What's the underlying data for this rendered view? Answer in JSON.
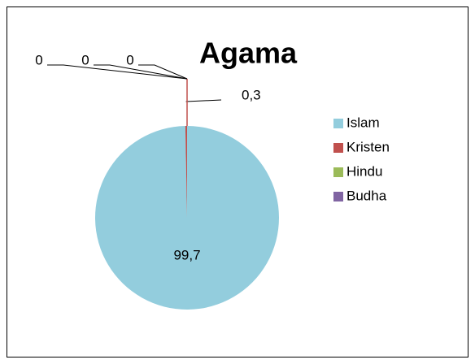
{
  "chart_data": {
    "type": "pie",
    "title": "Agama",
    "categories": [
      "Islam",
      "Kristen",
      "Hindu",
      "Budha",
      null
    ],
    "values": [
      99.7,
      0.3,
      0,
      0,
      0
    ],
    "value_labels": [
      "99,7",
      "0,3",
      "0",
      "0",
      "0"
    ],
    "colors": [
      "#93cddd",
      "#c0504d",
      "#9bbb59",
      "#8064a2",
      "#4bacc6"
    ],
    "legend": "right"
  }
}
